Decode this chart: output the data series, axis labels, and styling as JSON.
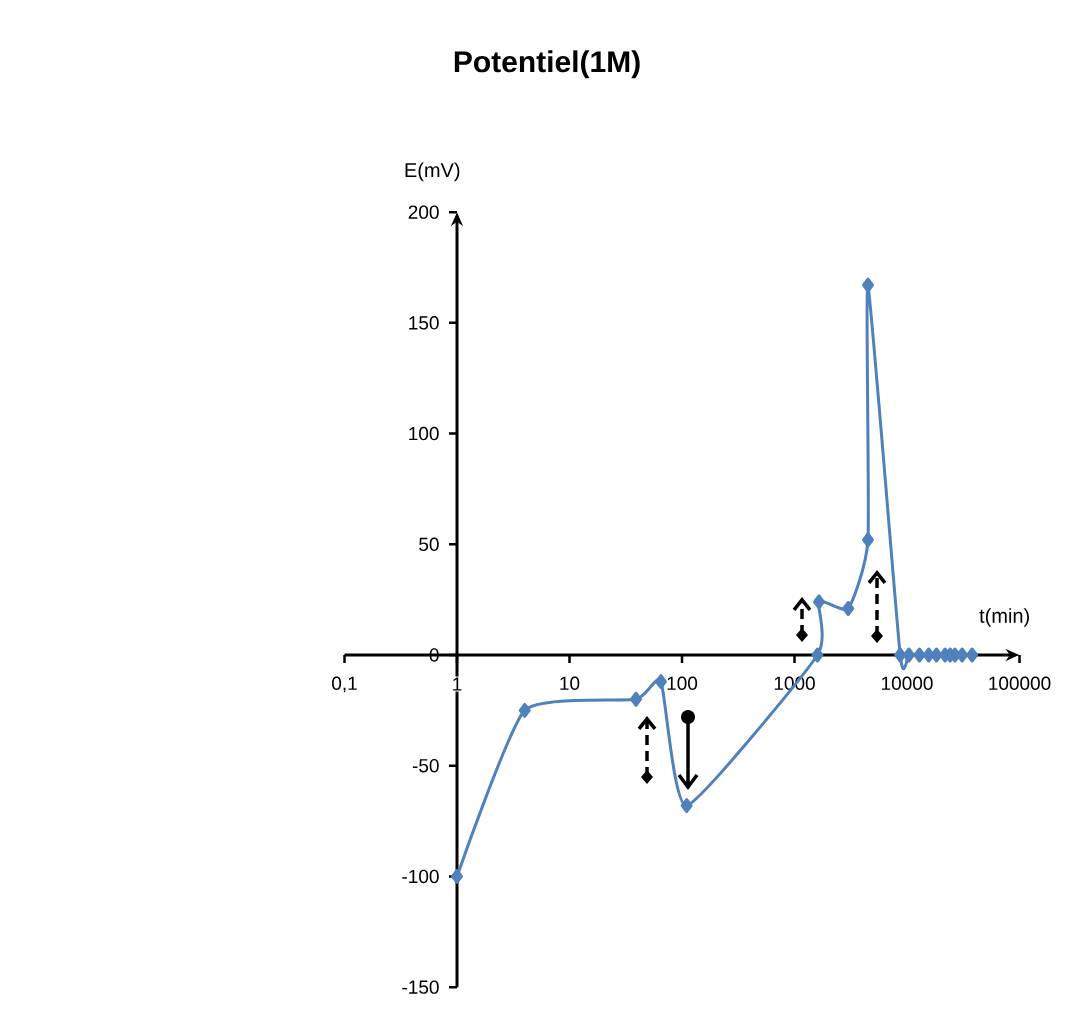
{
  "chart_data": {
    "type": "line",
    "title": "Potentiel(1M)",
    "xlabel": "t(min)",
    "ylabel": "E(mV)",
    "log": "x",
    "marker": "diamond",
    "line_style": "solid",
    "xlim": [
      0.1,
      100000
    ],
    "ylim": [
      -150,
      200
    ],
    "xticks": [
      {
        "value": 0.1,
        "label": "0,1"
      },
      1,
      10,
      100,
      1000,
      10000,
      100000
    ],
    "yticks": [
      -150,
      -100,
      -50,
      0,
      50,
      100,
      150,
      200
    ],
    "series": [
      {
        "color": "#4f81bd",
        "x": [
          1,
          4,
          39,
          65,
          110,
          1600,
          1650,
          3000,
          4500,
          4500,
          8700,
          10400,
          12900,
          15600,
          18300,
          21800,
          24200,
          26700,
          30900,
          37900
        ],
        "values": [
          -100,
          -25,
          -20,
          -12,
          -68,
          0,
          24,
          21,
          52,
          167,
          0,
          0,
          0,
          0,
          0,
          0,
          0,
          0,
          0,
          0
        ]
      }
    ]
  }
}
